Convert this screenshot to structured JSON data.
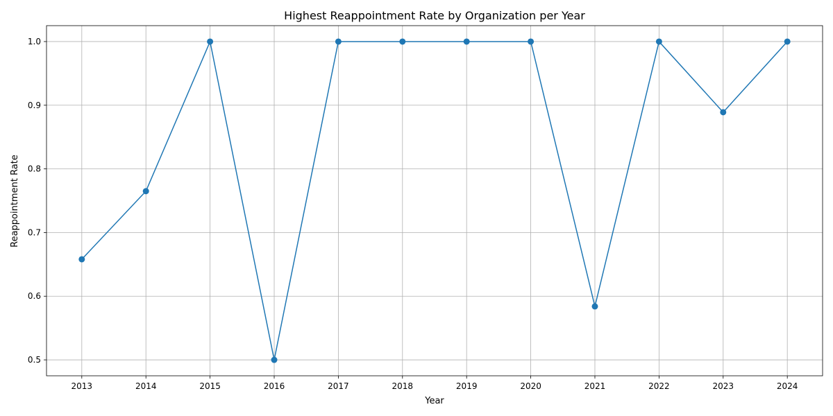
{
  "chart_data": {
    "type": "line",
    "title": "Highest Reappointment Rate by Organization per Year",
    "xlabel": "Year",
    "ylabel": "Reappointment Rate",
    "x": [
      2013,
      2014,
      2015,
      2016,
      2017,
      2018,
      2019,
      2020,
      2021,
      2022,
      2023,
      2024
    ],
    "series": [
      {
        "values": [
          0.658,
          0.765,
          1.0,
          0.5,
          1.0,
          1.0,
          1.0,
          1.0,
          0.584,
          1.0,
          0.889,
          1.0
        ]
      }
    ],
    "x_ticks": [
      "2013",
      "2014",
      "2015",
      "2016",
      "2017",
      "2018",
      "2019",
      "2020",
      "2021",
      "2022",
      "2023",
      "2024"
    ],
    "y_ticks": [
      "0.5",
      "0.6",
      "0.7",
      "0.8",
      "0.9",
      "1.0"
    ],
    "xlim": [
      2012.45,
      2024.55
    ],
    "ylim": [
      0.475,
      1.025
    ],
    "grid": true,
    "marker": "circle",
    "colors": {
      "line": "#1f77b4",
      "grid": "#b0b0b0",
      "axis": "#000000"
    }
  }
}
